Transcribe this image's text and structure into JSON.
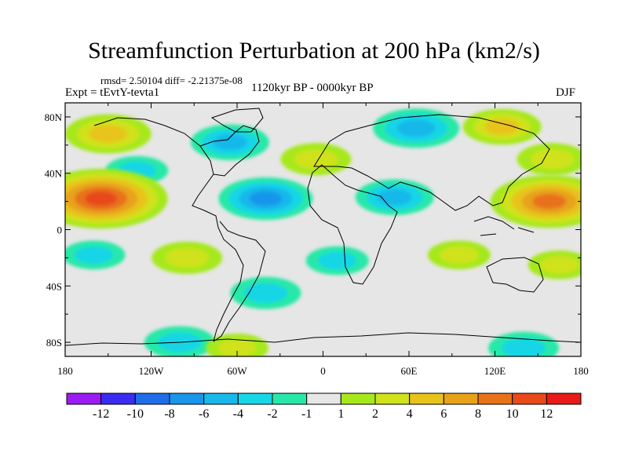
{
  "chart_data": {
    "type": "heatmap",
    "title": "Streamfunction Perturbation at 200 hPa (km2/s)",
    "stats_line": "rmsd= 2.50104 diff= -2.21375e-08",
    "experiment_label": "Expt = tEvtY-tevta1",
    "period_label": "1120kyr BP - 0000kyr BP",
    "season_label": "DJF",
    "x_range": [
      -180,
      180
    ],
    "y_range": [
      -90,
      90
    ],
    "x_tick_labels": [
      "180",
      "120W",
      "60W",
      "0",
      "60E",
      "120E",
      "180"
    ],
    "y_tick_labels": [
      "80N",
      "40N",
      "0",
      "40S",
      "80S"
    ],
    "colorbar": {
      "labels": [
        "-12",
        "-10",
        "-8",
        "-6",
        "-4",
        "-2",
        "-1",
        "1",
        "2",
        "4",
        "6",
        "8",
        "10",
        "12"
      ],
      "colors": [
        "#9b1cf2",
        "#3a2df0",
        "#1f6ee8",
        "#1996ea",
        "#19b8ea",
        "#19d6e6",
        "#27e8a8",
        "#e6e6e6",
        "#a6e81a",
        "#cfe21a",
        "#e8c31a",
        "#e8a21a",
        "#e8721a",
        "#e84a1a",
        "#e81a1a"
      ]
    },
    "anomaly_regions": [
      {
        "lon": -150,
        "lat": 68,
        "value": 5
      },
      {
        "lon": 125,
        "lat": 73,
        "value": 4
      },
      {
        "lon": 65,
        "lat": 72,
        "value": -5
      },
      {
        "lon": -65,
        "lat": 62,
        "value": -4
      },
      {
        "lon": -130,
        "lat": 42,
        "value": -2
      },
      {
        "lon": -5,
        "lat": 50,
        "value": 3
      },
      {
        "lon": 160,
        "lat": 50,
        "value": 3
      },
      {
        "lon": -155,
        "lat": 22,
        "value": 11
      },
      {
        "lon": 158,
        "lat": 20,
        "value": 9
      },
      {
        "lon": -40,
        "lat": 22,
        "value": -6
      },
      {
        "lon": 50,
        "lat": 23,
        "value": -4
      },
      {
        "lon": -160,
        "lat": -18,
        "value": -2
      },
      {
        "lon": -95,
        "lat": -20,
        "value": 3
      },
      {
        "lon": 10,
        "lat": -22,
        "value": -2
      },
      {
        "lon": 95,
        "lat": -18,
        "value": 2
      },
      {
        "lon": 165,
        "lat": -25,
        "value": 2
      },
      {
        "lon": -40,
        "lat": -45,
        "value": -3
      },
      {
        "lon": -100,
        "lat": -80,
        "value": -3
      },
      {
        "lon": -60,
        "lat": -84,
        "value": 2
      },
      {
        "lon": 140,
        "lat": -84,
        "value": -3
      }
    ]
  }
}
